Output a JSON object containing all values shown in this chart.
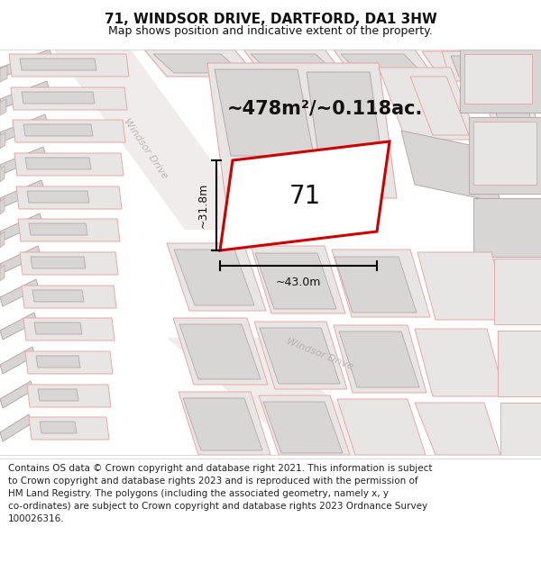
{
  "title": "71, WINDSOR DRIVE, DARTFORD, DA1 3HW",
  "subtitle": "Map shows position and indicative extent of the property.",
  "area_text": "~478m²/~0.118ac.",
  "label_71": "71",
  "dim_height": "~31.8m",
  "dim_width": "~43.0m",
  "road_label": "Windsor Drive",
  "footer": "Contains OS data © Crown copyright and database right 2021. This information is subject to Crown copyright and database rights 2023 and is reproduced with the permission of HM Land Registry. The polygons (including the associated geometry, namely x, y co-ordinates) are subject to Crown copyright and database rights 2023 Ordnance Survey 100026316.",
  "bg_color": "#ffffff",
  "map_bg": "#f9f7f7",
  "plot_fill": "#e8e5e5",
  "plot_edge": "#e8a8a8",
  "bldg_fill": "#d8d5d5",
  "bldg_edge": "#b8a8a8",
  "highlight_color": "#cc0000",
  "text_color": "#111111",
  "road_text_color": "#b8b0b0",
  "footer_color": "#222222",
  "title_fontsize": 11,
  "subtitle_fontsize": 9,
  "area_fontsize": 15,
  "label_fontsize": 20,
  "dim_fontsize": 9,
  "footer_fontsize": 7.5,
  "road_label_fontsize": 8
}
